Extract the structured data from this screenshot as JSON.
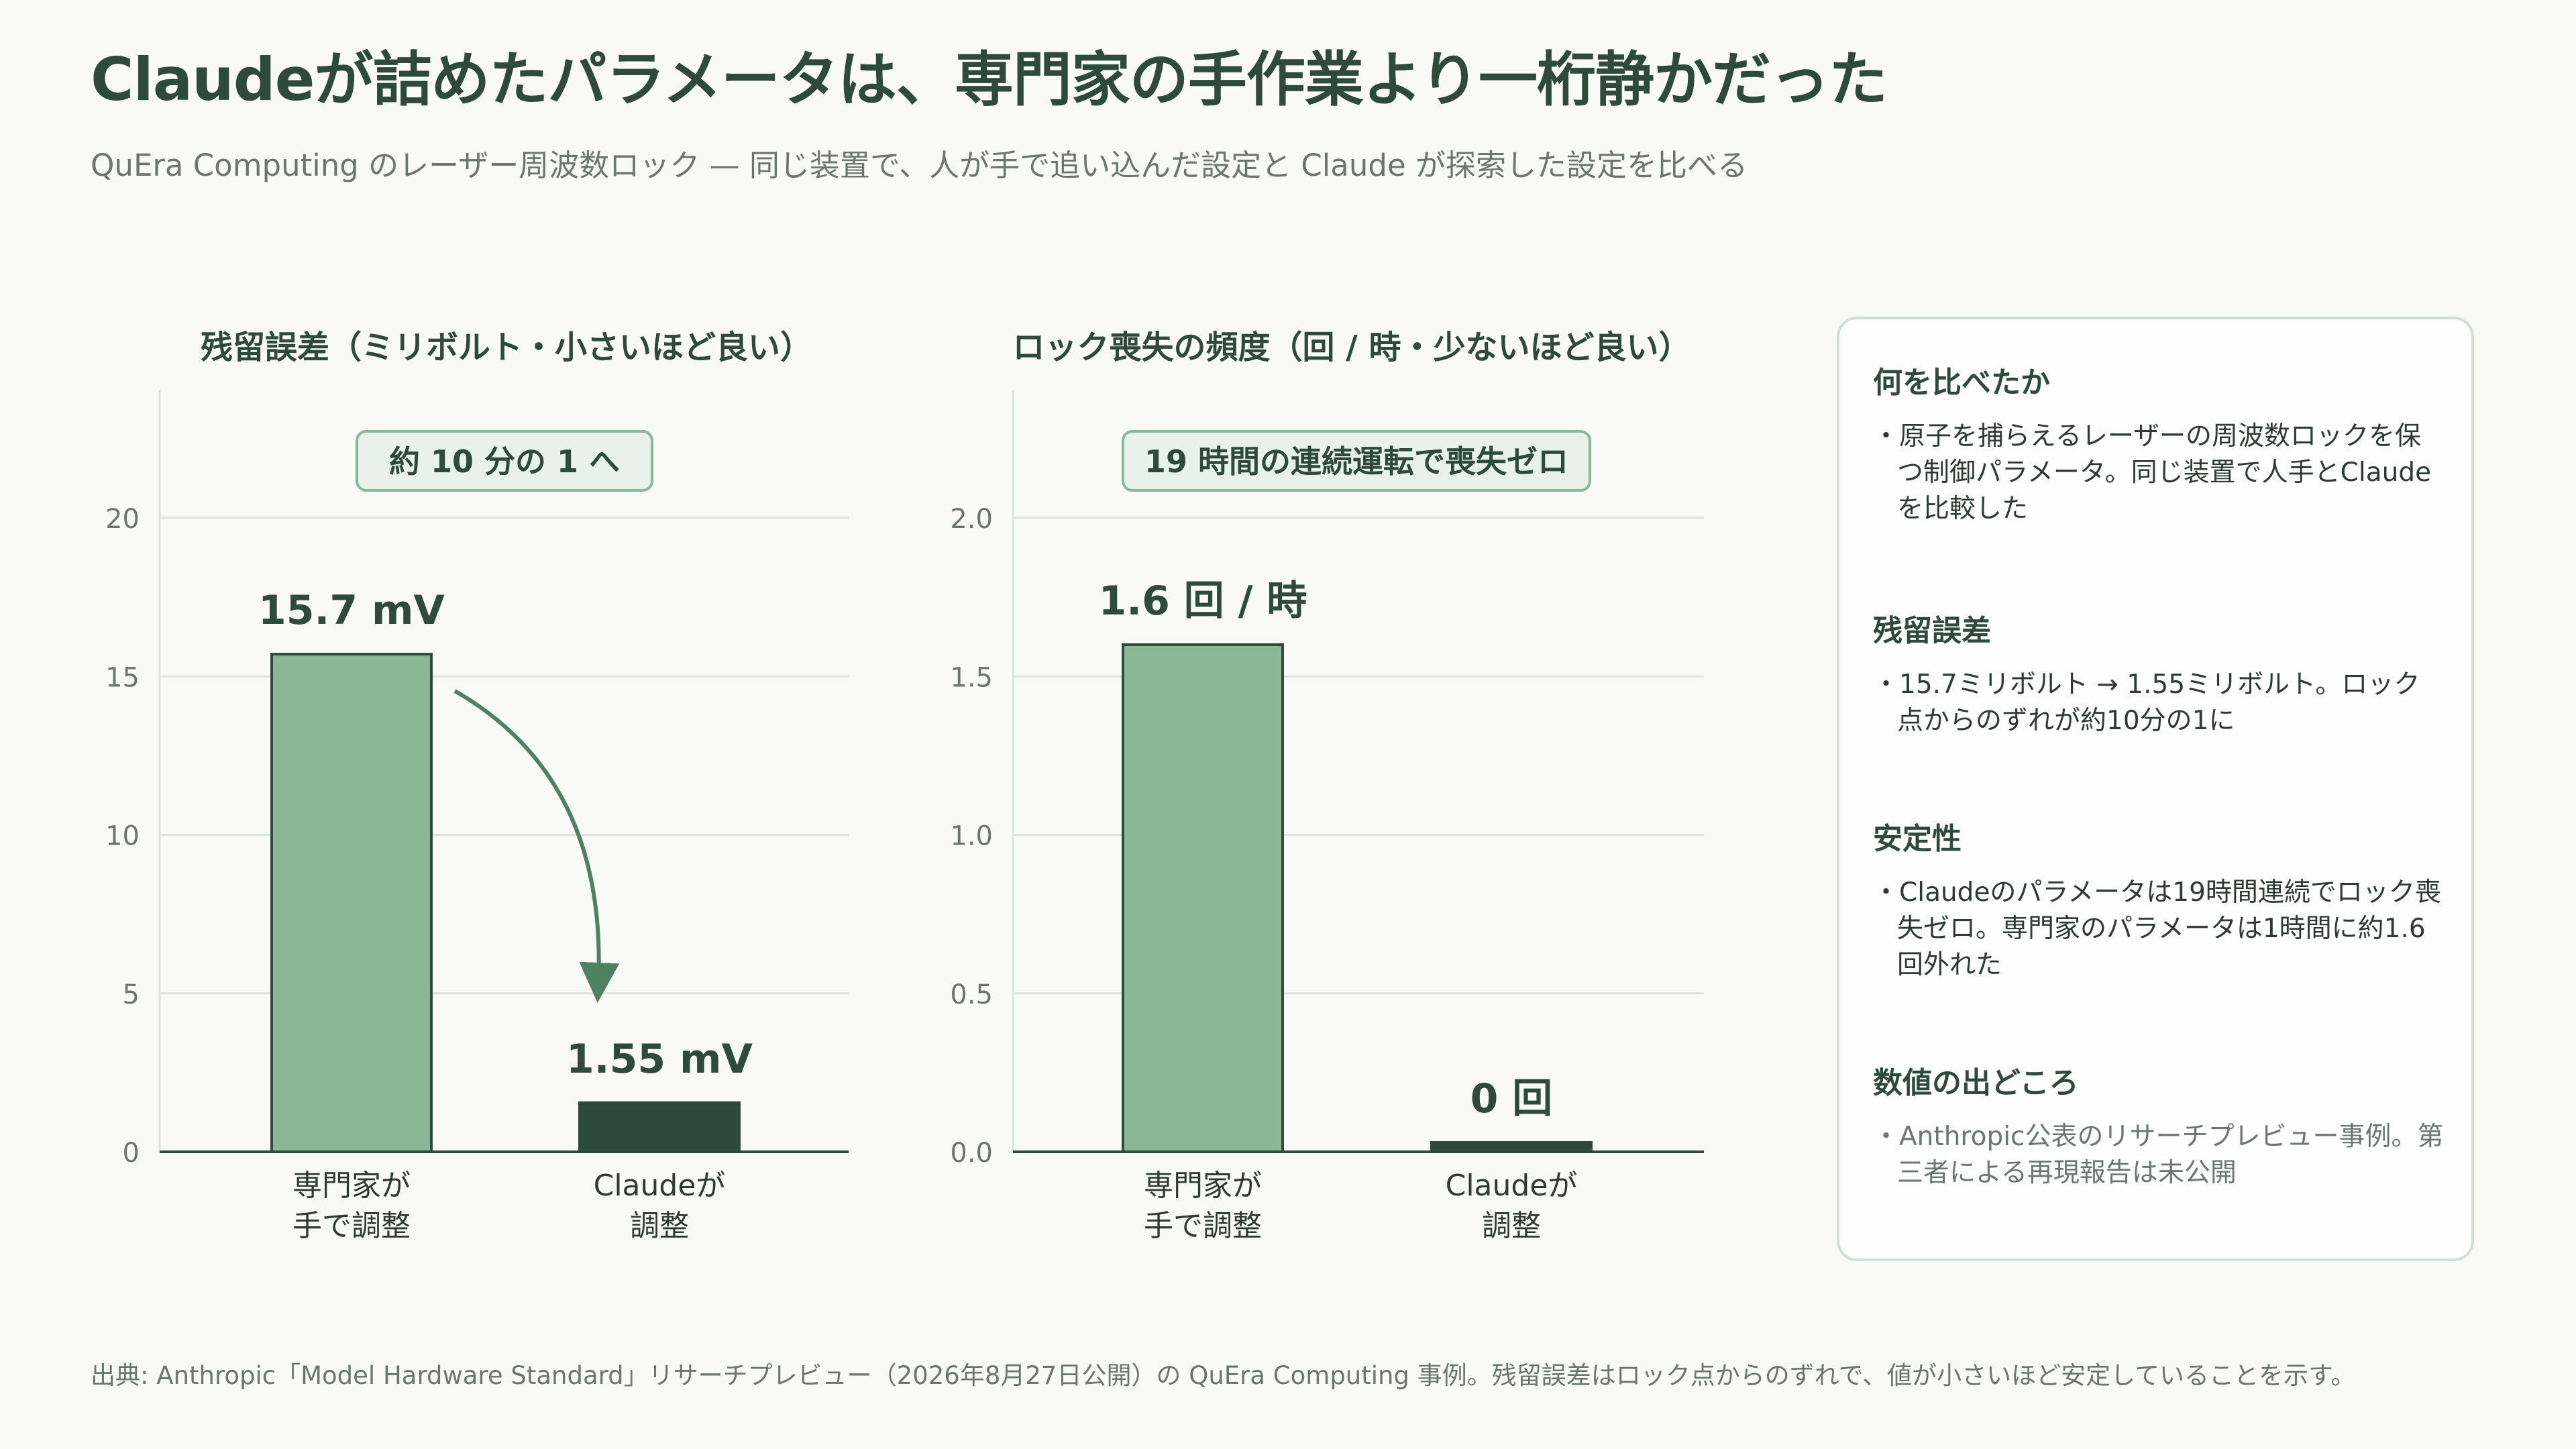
{
  "header": {
    "title": "Claudeが詰めたパラメータは、専門家の手作業より一桁静かだった",
    "subtitle": "QuEra Computing のレーザー周波数ロック — 同じ装置で、人が手で追い込んだ設定と Claude が探索した設定を比べる"
  },
  "chart_data": [
    {
      "type": "bar",
      "title": "残留誤差（ミリボルト・小さいほど良い）",
      "categories": [
        "専門家が\n手で調整",
        "Claudeが\n調整"
      ],
      "values": [
        15.7,
        1.55
      ],
      "value_labels": [
        "15.7 mV",
        "1.55 mV"
      ],
      "ylim": [
        0,
        20
      ],
      "yticks": [
        0,
        5,
        10,
        15,
        20
      ],
      "ytick_labels": [
        "0",
        "5",
        "10",
        "15",
        "20"
      ],
      "annotation": "約 10 分の 1 へ",
      "bar_colors": [
        "#8ab894",
        "#2e4a3d"
      ],
      "grid": true
    },
    {
      "type": "bar",
      "title": "ロック喪失の頻度（回 / 時・少ないほど良い）",
      "categories": [
        "専門家が\n手で調整",
        "Claudeが\n調整"
      ],
      "values": [
        1.6,
        0
      ],
      "value_labels": [
        "1.6 回 / 時",
        "0 回"
      ],
      "ylim": [
        0,
        2.0
      ],
      "yticks": [
        0,
        0.5,
        1.0,
        1.5,
        2.0
      ],
      "ytick_labels": [
        "0.0",
        "0.5",
        "1.0",
        "1.5",
        "2.0"
      ],
      "annotation": "19 時間の連続運転で喪失ゼロ",
      "bar_colors": [
        "#8ab894",
        "#2e4a3d"
      ],
      "grid": true
    }
  ],
  "side_panel": {
    "sections": [
      {
        "heading": "何を比べたか",
        "body": "・原子を捕らえるレーザーの周波数ロックを保つ制御パラメータ。同じ装置で人手とClaudeを比較した",
        "muted": false
      },
      {
        "heading": "残留誤差",
        "body": "・15.7ミリボルト → 1.55ミリボルト。ロック点からのずれが約10分の1に",
        "muted": false
      },
      {
        "heading": "安定性",
        "body": "・Claudeのパラメータは19時間連続でロック喪失ゼロ。専門家のパラメータは1時間に約1.6回外れた",
        "muted": false
      },
      {
        "heading": "数値の出どころ",
        "body": "・Anthropic公表のリサーチプレビュー事例。第三者による再現報告は未公開",
        "muted": true
      }
    ]
  },
  "footer": {
    "source": "出典: Anthropic「Model Hardware Standard」リサーチプレビュー（2026年8月27日公開）の QuEra Computing 事例。残留誤差はロック点からのずれで、値が小さいほど安定していることを示す。"
  },
  "colors": {
    "accent_dark": "#2e4a3d",
    "accent_light": "#8ab894",
    "arrow": "#4e8160",
    "annotation_bg": "#e8f2ea",
    "annotation_border": "#8ab894"
  }
}
